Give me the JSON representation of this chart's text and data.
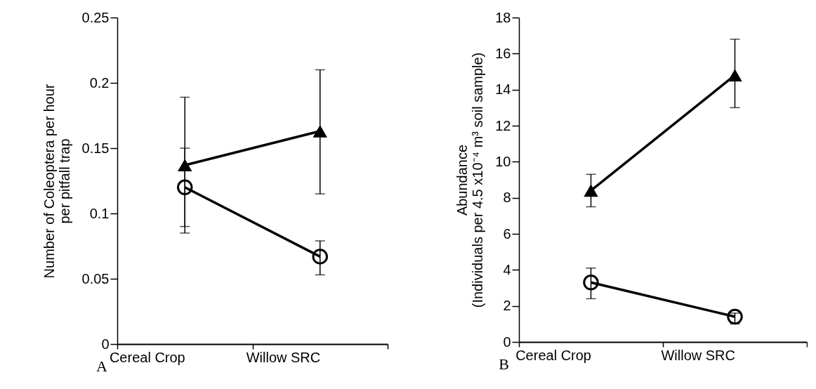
{
  "chart_data": [
    {
      "type": "line",
      "categories": [
        "Cereal Crop",
        "Willow SRC"
      ],
      "ylabel": "Number of Coleoptera per hour\nper pitfall trap",
      "ylim": [
        0,
        0.25
      ],
      "yticks": [
        0,
        0.05,
        0.1,
        0.15,
        0.2,
        0.25
      ],
      "grid": false,
      "line_style": "solid",
      "annotations": [
        "A"
      ],
      "series": [
        {
          "color": "#000000",
          "marker": "triangle",
          "values": [
            0.137,
            0.163
          ],
          "errors": [
            [
              0.085,
              0.189
            ],
            [
              0.115,
              0.21
            ]
          ]
        },
        {
          "color": "#000000",
          "marker": "circle",
          "values": [
            0.12,
            0.067
          ],
          "errors": [
            [
              0.09,
              0.15
            ],
            [
              0.053,
              0.079
            ]
          ]
        }
      ]
    },
    {
      "type": "line",
      "categories": [
        "Cereal Crop",
        "Willow SRC"
      ],
      "ylabel": "Abundance\n(Individuals per 4.5 x10⁻⁴ m³ soil sample)",
      "ylim": [
        0,
        18
      ],
      "yticks": [
        0,
        2,
        4,
        6,
        8,
        10,
        12,
        14,
        16,
        18
      ],
      "grid": false,
      "line_style": "solid",
      "annotations": [
        "B"
      ],
      "series": [
        {
          "color": "#000000",
          "marker": "triangle",
          "values": [
            8.4,
            14.8
          ],
          "errors": [
            [
              7.5,
              9.3
            ],
            [
              13,
              16.8
            ]
          ]
        },
        {
          "color": "#000000",
          "marker": "circle",
          "values": [
            3.3,
            1.4
          ],
          "errors": [
            [
              2.4,
              4.1
            ],
            [
              1.0,
              1.6
            ]
          ]
        }
      ]
    }
  ]
}
